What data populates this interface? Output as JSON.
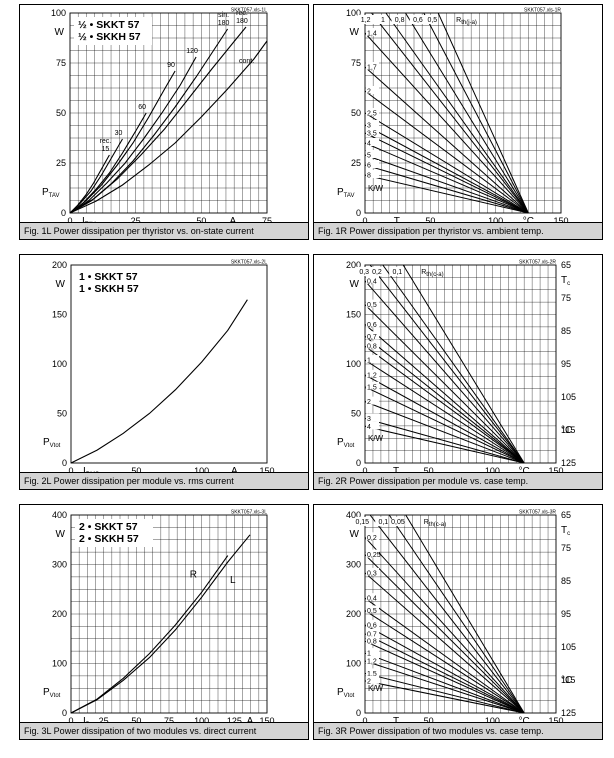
{
  "panels": [
    {
      "id": "1L",
      "caption": "Fig. 1L Power dissipation per thyristor vs. on-state current",
      "source_label": "SKKT057.xls-1L",
      "titles": [
        "½ • SKKT 57",
        "½ • SKKH 57"
      ],
      "y_unit": "W",
      "x_unit": "A",
      "y_axis_label": "P",
      "y_axis_sub": "TAV",
      "x_axis_label": "I",
      "x_axis_sub": "TAV"
    },
    {
      "id": "1R",
      "caption": "Fig. 1R Power dissipation per thyristor vs. ambient temp.",
      "source_label": "SKKT057.xls-1R",
      "y_unit": "W",
      "x_unit": "°C",
      "y_axis_label": "P",
      "y_axis_sub": "TAV",
      "x_axis_label": "T",
      "x_axis_sub": "a",
      "rth_unit": "K/W",
      "rth_label": "R",
      "rth_sub": "th(j-a)"
    },
    {
      "id": "2L",
      "caption": "Fig. 2L Power dissipation per module vs. rms current",
      "source_label": "SKKT057.xls-2L",
      "titles": [
        "1 • SKKT 57",
        "1 • SKKH 57"
      ],
      "y_unit": "W",
      "x_unit": "A",
      "y_axis_label": "P",
      "y_axis_sub": "Vtot",
      "x_axis_label": "I",
      "x_axis_sub": "RMS"
    },
    {
      "id": "2R",
      "caption": "Fig. 2R Power dissipation per module vs. case temp.",
      "source_label": "SKKT057.xls-2R",
      "y_unit": "W",
      "x_unit": "°C",
      "y_axis_label": "P",
      "y_axis_sub": "Vtot",
      "x_axis_label": "T",
      "x_axis_sub": "a",
      "rth_unit": "K/W",
      "rth_label": "R",
      "rth_sub": "th(c-a)",
      "right_axis_label": "T",
      "right_axis_sub": "c",
      "right_unit": "°C"
    },
    {
      "id": "3L",
      "caption": "Fig. 3L Power dissipation of two modules vs. direct current",
      "source_label": "SKKT057.xls-3L",
      "titles": [
        "2 • SKKT 57",
        "2 • SKKH 57"
      ],
      "y_unit": "W",
      "x_unit": "A",
      "y_axis_label": "P",
      "y_axis_sub": "Vtot",
      "x_axis_label": "I",
      "x_axis_sub": "D"
    },
    {
      "id": "3R",
      "caption": "Fig. 3R Power dissipation of two modules vs. case temp.",
      "source_label": "SKKT057.xls-3R",
      "y_unit": "W",
      "x_unit": "°C",
      "y_axis_label": "P",
      "y_axis_sub": "Vtot",
      "x_axis_label": "T",
      "x_axis_sub": "a",
      "rth_unit": "K/W",
      "rth_label": "R",
      "rth_sub": "th(c-a)",
      "right_axis_label": "T",
      "right_axis_sub": "c",
      "right_unit": "°C"
    }
  ],
  "chart_data": [
    {
      "id": "1L",
      "type": "line",
      "xlim": [
        0,
        75
      ],
      "ylim": [
        0,
        100
      ],
      "x_ticks": [
        0,
        25,
        50,
        75
      ],
      "y_ticks": [
        0,
        25,
        50,
        75,
        100
      ],
      "grid": true,
      "series": [
        {
          "name": "rec. 15",
          "label": [
            "rec.",
            "15"
          ],
          "points": [
            [
              0,
              0
            ],
            [
              3,
              4
            ],
            [
              6,
              9
            ],
            [
              9,
              15
            ],
            [
              12,
              22
            ],
            [
              15,
              29
            ]
          ]
        },
        {
          "name": "30",
          "label": [
            "30"
          ],
          "points": [
            [
              0,
              0
            ],
            [
              4,
              5
            ],
            [
              8,
              11
            ],
            [
              12,
              19
            ],
            [
              16,
              28
            ],
            [
              20,
              37
            ]
          ]
        },
        {
          "name": "60",
          "label": [
            "60"
          ],
          "points": [
            [
              0,
              0
            ],
            [
              5,
              5
            ],
            [
              10,
              12
            ],
            [
              15,
              20
            ],
            [
              20,
              30
            ],
            [
              25,
              41
            ],
            [
              29,
              50
            ]
          ]
        },
        {
          "name": "90",
          "label": [
            "90"
          ],
          "points": [
            [
              0,
              0
            ],
            [
              6,
              6
            ],
            [
              12,
              14
            ],
            [
              18,
              24
            ],
            [
              24,
              35
            ],
            [
              30,
              48
            ],
            [
              36,
              62
            ],
            [
              40,
              71
            ]
          ]
        },
        {
          "name": "120",
          "label": [
            "120"
          ],
          "points": [
            [
              0,
              0
            ],
            [
              7,
              6
            ],
            [
              14,
              15
            ],
            [
              21,
              25
            ],
            [
              28,
              37
            ],
            [
              35,
              50
            ],
            [
              42,
              64
            ],
            [
              48,
              78
            ]
          ]
        },
        {
          "name": "sin. 180",
          "label": [
            "sin.",
            "180"
          ],
          "points": [
            [
              0,
              0
            ],
            [
              8,
              6
            ],
            [
              16,
              15
            ],
            [
              24,
              26
            ],
            [
              32,
              39
            ],
            [
              40,
              53
            ],
            [
              48,
              68
            ],
            [
              55,
              82
            ],
            [
              60,
              92
            ]
          ]
        },
        {
          "name": "rec. 180",
          "label": [
            "rec.",
            "180"
          ],
          "points": [
            [
              0,
              0
            ],
            [
              9,
              7
            ],
            [
              18,
              17
            ],
            [
              27,
              29
            ],
            [
              36,
              42
            ],
            [
              45,
              57
            ],
            [
              54,
              72
            ],
            [
              62,
              85
            ],
            [
              67,
              93
            ]
          ]
        },
        {
          "name": "cont.",
          "label": [
            "cont."
          ],
          "points": [
            [
              0,
              0
            ],
            [
              10,
              6
            ],
            [
              20,
              14
            ],
            [
              30,
              24
            ],
            [
              40,
              35
            ],
            [
              50,
              48
            ],
            [
              60,
              62
            ],
            [
              70,
              77
            ],
            [
              75,
              86
            ]
          ]
        }
      ]
    },
    {
      "id": "1R",
      "type": "line",
      "xlim": [
        0,
        150
      ],
      "ylim": [
        0,
        100
      ],
      "x_ticks": [
        0,
        50,
        100,
        150
      ],
      "y_ticks": [
        0,
        25,
        50,
        75,
        100
      ],
      "grid": true,
      "fan_to": [
        125,
        0
      ],
      "lines": [
        {
          "name": "1,2",
          "label": "1,2",
          "label_side": "top",
          "start": [
            5,
            100
          ]
        },
        {
          "name": "1",
          "label": "1",
          "label_side": "top",
          "start": [
            16,
            100
          ]
        },
        {
          "name": "0,8",
          "label": "0,8",
          "label_side": "top",
          "start": [
            31,
            100
          ]
        },
        {
          "name": "0,6",
          "label": "0,6",
          "label_side": "top",
          "start": [
            45,
            100
          ]
        },
        {
          "name": "0,5",
          "label": "0,5",
          "label_side": "top",
          "start": [
            56,
            100
          ]
        },
        {
          "name": "1,4",
          "label": "1,4",
          "label_side": "left",
          "start": [
            0,
            90
          ]
        },
        {
          "name": "1,7",
          "label": "1,7",
          "label_side": "left",
          "start": [
            0,
            73
          ]
        },
        {
          "name": "2",
          "label": "2",
          "label_side": "left",
          "start": [
            0,
            61
          ]
        },
        {
          "name": "2,5",
          "label": "2,5",
          "label_side": "left",
          "start": [
            0,
            50
          ]
        },
        {
          "name": "3",
          "label": "3",
          "label_side": "left",
          "start": [
            0,
            44
          ]
        },
        {
          "name": "3,5",
          "label": "3,5",
          "label_side": "left",
          "start": [
            0,
            40
          ]
        },
        {
          "name": "4",
          "label": "4",
          "label_side": "left",
          "start": [
            0,
            35
          ]
        },
        {
          "name": "5",
          "label": "5",
          "label_side": "left",
          "start": [
            0,
            29
          ]
        },
        {
          "name": "6",
          "label": "6",
          "label_side": "left",
          "start": [
            0,
            24
          ]
        },
        {
          "name": "8",
          "label": "8",
          "label_side": "left",
          "start": [
            0,
            19
          ]
        }
      ]
    },
    {
      "id": "2L",
      "type": "line",
      "xlim": [
        0,
        150
      ],
      "ylim": [
        0,
        200
      ],
      "x_ticks": [
        0,
        50,
        100,
        150
      ],
      "y_ticks": [
        0,
        50,
        100,
        150,
        200
      ],
      "grid": false,
      "series": [
        {
          "name": "curve",
          "points": [
            [
              0,
              0
            ],
            [
              20,
              13
            ],
            [
              40,
              30
            ],
            [
              60,
              50
            ],
            [
              80,
              74
            ],
            [
              100,
              102
            ],
            [
              120,
              134
            ],
            [
              135,
              165
            ]
          ]
        }
      ]
    },
    {
      "id": "2R",
      "type": "line",
      "xlim": [
        0,
        150
      ],
      "ylim": [
        0,
        200
      ],
      "x_ticks": [
        0,
        50,
        100,
        150
      ],
      "y_ticks": [
        0,
        50,
        100,
        150,
        200
      ],
      "right_ticks": [
        65,
        75,
        85,
        95,
        105,
        115,
        125
      ],
      "grid": true,
      "fan_to": [
        125,
        0
      ],
      "lines": [
        {
          "name": "0,3",
          "label": "0,3",
          "label_side": "top",
          "start": [
            4,
            200
          ]
        },
        {
          "name": "0,2",
          "label": "0,2",
          "label_side": "top",
          "start": [
            14,
            200
          ]
        },
        {
          "name": "0,1",
          "label": "0,1",
          "label_side": "top",
          "start": [
            30,
            200
          ]
        },
        {
          "name": "0,4",
          "label": "0,4",
          "label_side": "left",
          "start": [
            0,
            184
          ]
        },
        {
          "name": "0,5",
          "label": "0,5",
          "label_side": "left",
          "start": [
            0,
            160
          ]
        },
        {
          "name": "0,6",
          "label": "0,6",
          "label_side": "left",
          "start": [
            0,
            140
          ]
        },
        {
          "name": "0,7",
          "label": "0,7",
          "label_side": "left",
          "start": [
            0,
            128
          ]
        },
        {
          "name": "0,8",
          "label": "0,8",
          "label_side": "left",
          "start": [
            0,
            118
          ]
        },
        {
          "name": "1",
          "label": "1",
          "label_side": "left",
          "start": [
            0,
            104
          ]
        },
        {
          "name": "1,2",
          "label": "1,2",
          "label_side": "left",
          "start": [
            0,
            89
          ]
        },
        {
          "name": "1,5",
          "label": "1,5",
          "label_side": "left",
          "start": [
            0,
            77
          ]
        },
        {
          "name": "2",
          "label": "2",
          "label_side": "left",
          "start": [
            0,
            62
          ]
        },
        {
          "name": "3",
          "label": "3",
          "label_side": "left",
          "start": [
            0,
            45
          ]
        },
        {
          "name": "4",
          "label": "4",
          "label_side": "left",
          "start": [
            0,
            37
          ]
        }
      ]
    },
    {
      "id": "3L",
      "type": "line",
      "xlim": [
        0,
        150
      ],
      "ylim": [
        0,
        400
      ],
      "x_ticks": [
        0,
        25,
        50,
        75,
        100,
        125,
        150
      ],
      "y_ticks": [
        0,
        100,
        200,
        300,
        400
      ],
      "grid": true,
      "series": [
        {
          "name": "R",
          "label": "R",
          "points": [
            [
              0,
              0
            ],
            [
              20,
              28
            ],
            [
              40,
              70
            ],
            [
              60,
              120
            ],
            [
              80,
              178
            ],
            [
              100,
              244
            ],
            [
              120,
              318
            ]
          ]
        },
        {
          "name": "L",
          "label": "L",
          "points": [
            [
              0,
              0
            ],
            [
              20,
              27
            ],
            [
              40,
              66
            ],
            [
              60,
              112
            ],
            [
              80,
              168
            ],
            [
              100,
              234
            ],
            [
              120,
              305
            ],
            [
              137,
              360
            ]
          ]
        }
      ]
    },
    {
      "id": "3R",
      "type": "line",
      "xlim": [
        0,
        150
      ],
      "ylim": [
        0,
        400
      ],
      "x_ticks": [
        0,
        50,
        100,
        150
      ],
      "y_ticks": [
        0,
        100,
        200,
        300,
        400
      ],
      "right_ticks": [
        65,
        75,
        85,
        95,
        105,
        115,
        125
      ],
      "grid": true,
      "fan_to": [
        125,
        0
      ],
      "lines": [
        {
          "name": "0,15",
          "label": "0,15",
          "label_side": "top",
          "start": [
            4,
            400
          ]
        },
        {
          "name": "0,1",
          "label": "0,1",
          "label_side": "top",
          "start": [
            19,
            400
          ]
        },
        {
          "name": "0,05",
          "label": "0,05",
          "label_side": "top",
          "start": [
            32,
            400
          ]
        },
        {
          "name": "0,2",
          "label": "0,2",
          "label_side": "left",
          "start": [
            0,
            355
          ]
        },
        {
          "name": "0,25",
          "label": "0,25",
          "label_side": "left",
          "start": [
            0,
            320
          ]
        },
        {
          "name": "0,3",
          "label": "0,3",
          "label_side": "left",
          "start": [
            0,
            283
          ]
        },
        {
          "name": "0,4",
          "label": "0,4",
          "label_side": "left",
          "start": [
            0,
            232
          ]
        },
        {
          "name": "0,5",
          "label": "0,5",
          "label_side": "left",
          "start": [
            0,
            207
          ]
        },
        {
          "name": "0,6",
          "label": "0,6",
          "label_side": "left",
          "start": [
            0,
            178
          ]
        },
        {
          "name": "0,7",
          "label": "0,7",
          "label_side": "left",
          "start": [
            0,
            160
          ]
        },
        {
          "name": "0,8",
          "label": "0,8",
          "label_side": "left",
          "start": [
            0,
            145
          ]
        },
        {
          "name": "1",
          "label": "1",
          "label_side": "left",
          "start": [
            0,
            121
          ]
        },
        {
          "name": "1,2",
          "label": "1,2",
          "label_side": "left",
          "start": [
            0,
            105
          ]
        },
        {
          "name": "1,5",
          "label": "1,5",
          "label_side": "left",
          "start": [
            0,
            80
          ]
        },
        {
          "name": "2",
          "label": "2",
          "label_side": "left",
          "start": [
            0,
            65
          ]
        }
      ]
    }
  ]
}
